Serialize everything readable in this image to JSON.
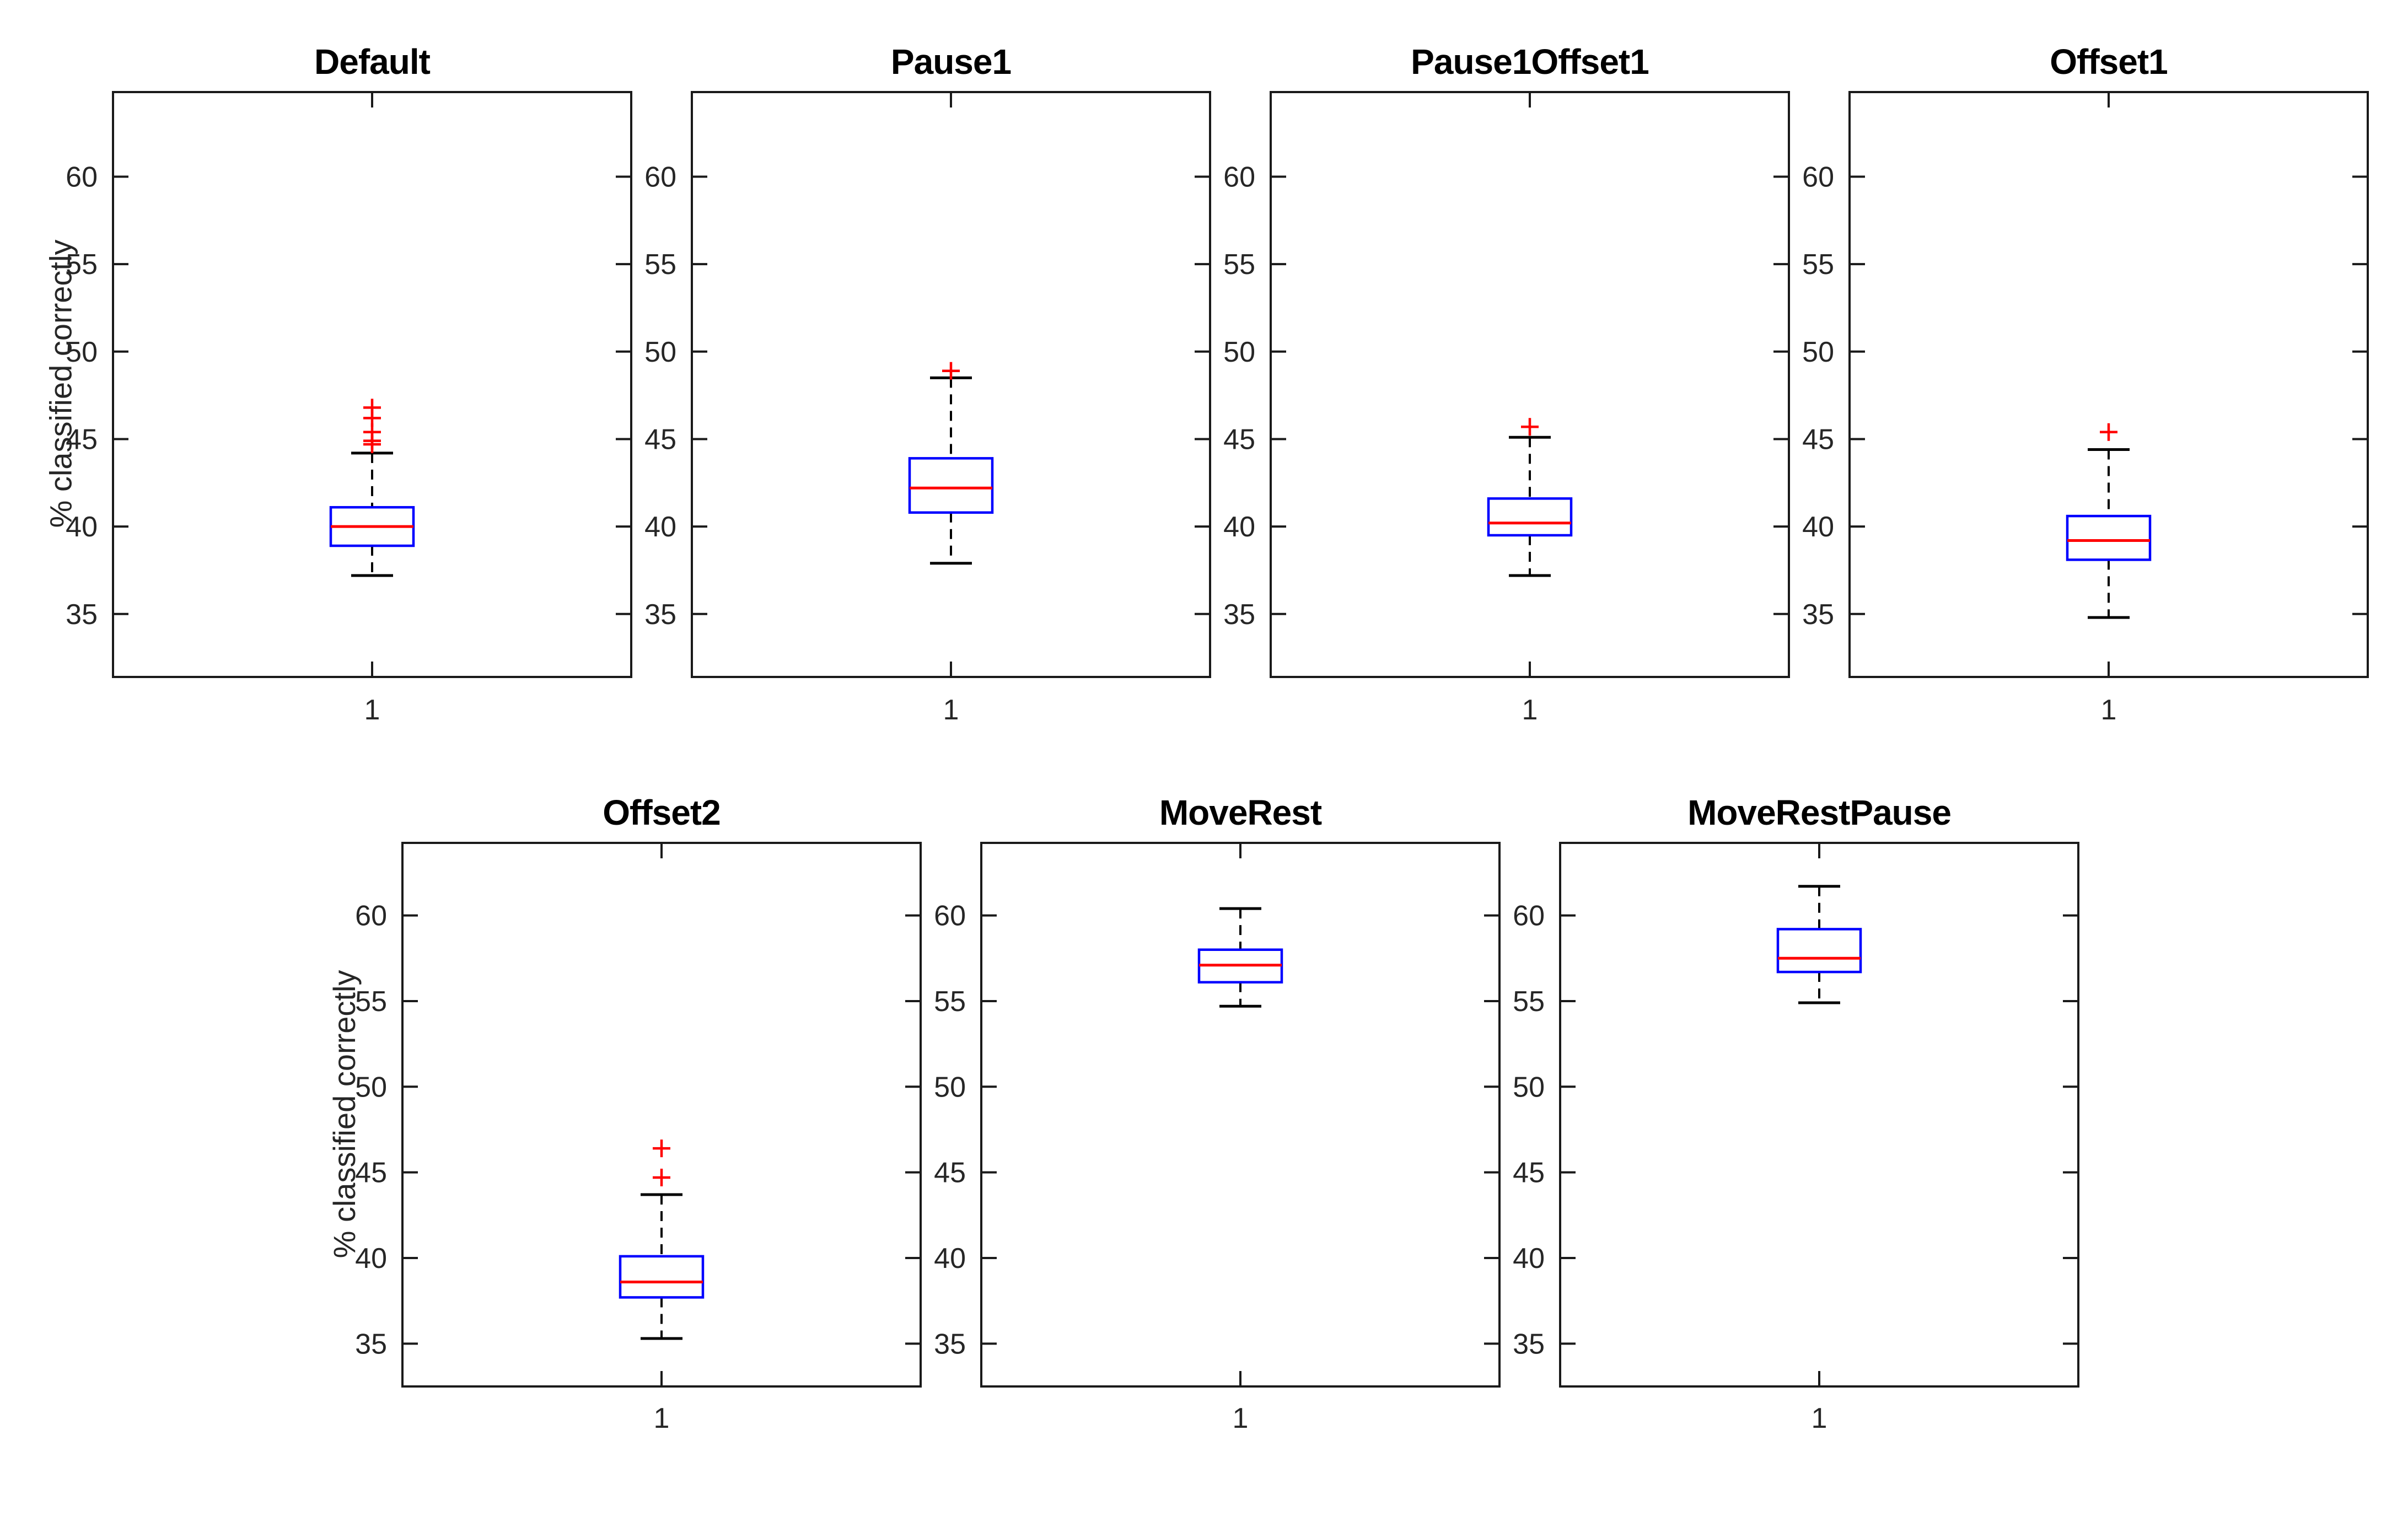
{
  "figure": {
    "background": "#ffffff"
  },
  "labels": {
    "ylabel": "% classified correctly",
    "xtick": "1"
  },
  "style": {
    "axis_color": "#1a1a1a",
    "tick_label_color": "#262626",
    "box_color": "#0000ff",
    "median_color": "#ff0000",
    "outlier_color": "#ff0000",
    "whisker_color": "#000000"
  },
  "chart_data": [
    {
      "type": "boxplot",
      "title": "Default",
      "row": 0,
      "xlabel_tick": "1",
      "ylabel": "% classified correctly",
      "ylim": [
        31.4,
        64.9
      ],
      "yticks": [
        35,
        40,
        45,
        50,
        55,
        60
      ],
      "stats": {
        "whisker_low": 37.2,
        "q1": 38.9,
        "median": 40.0,
        "q3": 41.1,
        "whisker_high": 44.2
      },
      "outliers": [
        44.7,
        44.9,
        45.4,
        46.2,
        46.8
      ]
    },
    {
      "type": "boxplot",
      "title": "Pause1",
      "row": 0,
      "xlabel_tick": "1",
      "ylabel": "",
      "ylim": [
        31.4,
        64.9
      ],
      "yticks": [
        35,
        40,
        45,
        50,
        55,
        60
      ],
      "stats": {
        "whisker_low": 37.9,
        "q1": 40.8,
        "median": 42.2,
        "q3": 43.9,
        "whisker_high": 48.5
      },
      "outliers": [
        48.9
      ]
    },
    {
      "type": "boxplot",
      "title": "Pause1Offset1",
      "row": 0,
      "xlabel_tick": "1",
      "ylabel": "",
      "ylim": [
        31.4,
        64.9
      ],
      "yticks": [
        35,
        40,
        45,
        50,
        55,
        60
      ],
      "stats": {
        "whisker_low": 37.2,
        "q1": 39.5,
        "median": 40.2,
        "q3": 41.6,
        "whisker_high": 45.1
      },
      "outliers": [
        45.7
      ]
    },
    {
      "type": "boxplot",
      "title": "Offset1",
      "row": 0,
      "xlabel_tick": "1",
      "ylabel": "",
      "ylim": [
        31.4,
        64.9
      ],
      "yticks": [
        35,
        40,
        45,
        50,
        55,
        60
      ],
      "stats": {
        "whisker_low": 34.8,
        "q1": 38.1,
        "median": 39.2,
        "q3": 40.6,
        "whisker_high": 44.4
      },
      "outliers": [
        45.4
      ]
    },
    {
      "type": "boxplot",
      "title": "Offset2",
      "row": 1,
      "xlabel_tick": "1",
      "ylabel": "% classified correctly",
      "ylim": [
        32.5,
        64.3
      ],
      "yticks": [
        35,
        40,
        45,
        50,
        55,
        60
      ],
      "stats": {
        "whisker_low": 35.3,
        "q1": 37.7,
        "median": 38.6,
        "q3": 40.1,
        "whisker_high": 43.7
      },
      "outliers": [
        44.7,
        46.4
      ]
    },
    {
      "type": "boxplot",
      "title": "MoveRest",
      "row": 1,
      "xlabel_tick": "1",
      "ylabel": "",
      "ylim": [
        32.5,
        64.3
      ],
      "yticks": [
        35,
        40,
        45,
        50,
        55,
        60
      ],
      "stats": {
        "whisker_low": 54.7,
        "q1": 56.1,
        "median": 57.1,
        "q3": 58.0,
        "whisker_high": 60.4
      },
      "outliers": []
    },
    {
      "type": "boxplot",
      "title": "MoveRestPause",
      "row": 1,
      "xlabel_tick": "1",
      "ylabel": "",
      "ylim": [
        32.5,
        64.3
      ],
      "yticks": [
        35,
        40,
        45,
        50,
        55,
        60
      ],
      "stats": {
        "whisker_low": 54.9,
        "q1": 56.7,
        "median": 57.5,
        "q3": 59.2,
        "whisker_high": 61.7
      },
      "outliers": []
    }
  ]
}
